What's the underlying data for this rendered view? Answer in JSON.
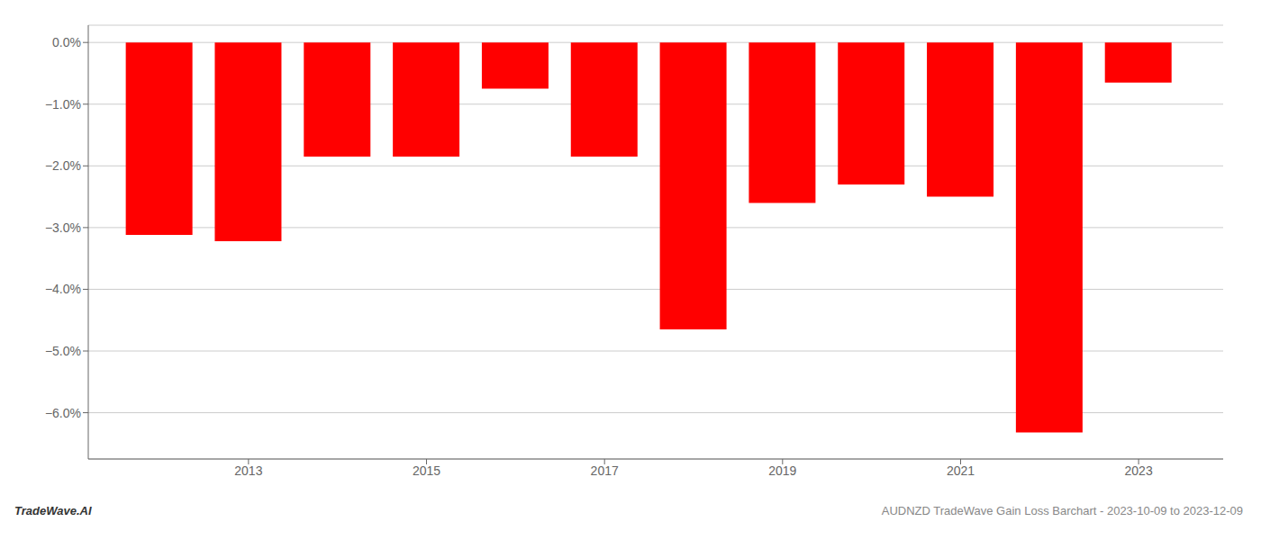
{
  "chart_data": {
    "type": "bar",
    "x": [
      2012,
      2013,
      2014,
      2015,
      2016,
      2017,
      2018,
      2019,
      2020,
      2021,
      2022,
      2023
    ],
    "values": [
      -3.12,
      -3.22,
      -1.85,
      -1.85,
      -0.75,
      -1.85,
      -4.65,
      -2.6,
      -2.3,
      -2.5,
      -6.32,
      -0.65
    ],
    "color": "#ff0000",
    "xlim": [
      2011.2,
      2023.95
    ],
    "xticks": [
      2013,
      2015,
      2017,
      2019,
      2021,
      2023
    ],
    "ylim": [
      -6.75,
      0.28
    ],
    "yticks": [
      {
        "value": 0.0,
        "label": "0.0%"
      },
      {
        "value": -1.0,
        "label": "−1.0%"
      },
      {
        "value": -2.0,
        "label": "−2.0%"
      },
      {
        "value": -3.0,
        "label": "−3.0%"
      },
      {
        "value": -4.0,
        "label": "−4.0%"
      },
      {
        "value": -5.0,
        "label": "−5.0%"
      },
      {
        "value": -6.0,
        "label": "−6.0%"
      }
    ],
    "grid": true,
    "annotations": [
      "TradeWave.AI",
      "AUDNZD TradeWave Gain Loss Barchart - 2023-10-09 to 2023-12-09"
    ]
  }
}
